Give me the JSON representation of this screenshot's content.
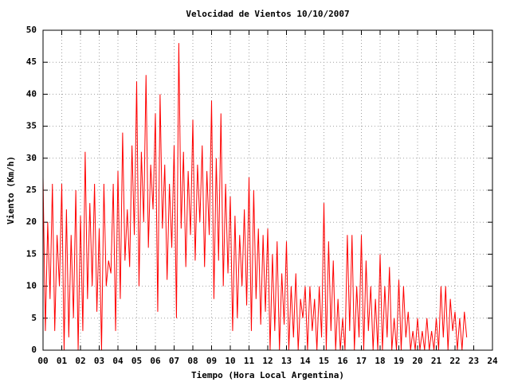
{
  "chart_data": {
    "type": "line",
    "title": "Velocidad de Vientos 10/10/2007",
    "x_label": "Tiempo (Hora Local Argentina)",
    "y_label": "Viento (Km/h)",
    "color": "#ff0000",
    "grid": true,
    "xlim": [
      0,
      24
    ],
    "ylim": [
      0,
      50
    ],
    "xticks": [
      {
        "value": 0,
        "label": "00"
      },
      {
        "value": 1,
        "label": "01"
      },
      {
        "value": 2,
        "label": "02"
      },
      {
        "value": 3,
        "label": "03"
      },
      {
        "value": 4,
        "label": "04"
      },
      {
        "value": 5,
        "label": "05"
      },
      {
        "value": 6,
        "label": "06"
      },
      {
        "value": 7,
        "label": "07"
      },
      {
        "value": 8,
        "label": "08"
      },
      {
        "value": 9,
        "label": "09"
      },
      10,
      11,
      12,
      13,
      14,
      15,
      16,
      17,
      18,
      19,
      20,
      21,
      22,
      23,
      24
    ],
    "yticks": [
      0,
      5,
      10,
      15,
      20,
      25,
      30,
      35,
      40,
      45,
      50
    ],
    "x": [
      0,
      0.125,
      0.25,
      0.375,
      0.5,
      0.625,
      0.75,
      0.875,
      1,
      1.125,
      1.25,
      1.375,
      1.5,
      1.625,
      1.75,
      1.875,
      2,
      2.125,
      2.25,
      2.375,
      2.5,
      2.625,
      2.75,
      2.875,
      3,
      3.125,
      3.25,
      3.375,
      3.5,
      3.625,
      3.75,
      3.875,
      4,
      4.125,
      4.25,
      4.375,
      4.5,
      4.625,
      4.75,
      4.875,
      5,
      5.125,
      5.25,
      5.375,
      5.5,
      5.625,
      5.75,
      5.875,
      6,
      6.125,
      6.25,
      6.375,
      6.5,
      6.625,
      6.75,
      6.875,
      7,
      7.125,
      7.25,
      7.375,
      7.5,
      7.625,
      7.75,
      7.875,
      8,
      8.125,
      8.25,
      8.375,
      8.5,
      8.625,
      8.75,
      8.875,
      9,
      9.125,
      9.25,
      9.375,
      9.5,
      9.625,
      9.75,
      9.875,
      10,
      10.125,
      10.25,
      10.375,
      10.5,
      10.625,
      10.75,
      10.875,
      11,
      11.125,
      11.25,
      11.375,
      11.5,
      11.625,
      11.75,
      11.875,
      12,
      12.125,
      12.25,
      12.375,
      12.5,
      12.625,
      12.75,
      12.875,
      13,
      13.125,
      13.25,
      13.375,
      13.5,
      13.625,
      13.75,
      13.875,
      14,
      14.125,
      14.25,
      14.375,
      14.5,
      14.625,
      14.75,
      14.875,
      15,
      15.125,
      15.25,
      15.375,
      15.5,
      15.625,
      15.75,
      15.875,
      16,
      16.125,
      16.25,
      16.375,
      16.5,
      16.625,
      16.75,
      16.875,
      17,
      17.125,
      17.25,
      17.375,
      17.5,
      17.625,
      17.75,
      17.875,
      18,
      18.125,
      18.25,
      18.375,
      18.5,
      18.625,
      18.75,
      18.875,
      19,
      19.125,
      19.25,
      19.375,
      19.5,
      19.625,
      19.75,
      19.875,
      20,
      20.125,
      20.25,
      20.375,
      20.5,
      20.625,
      20.75,
      20.875,
      21,
      21.125,
      21.25,
      21.375,
      21.5,
      21.625,
      21.75,
      21.875,
      22,
      22.125,
      22.25,
      22.375,
      22.5,
      22.625
    ],
    "values": [
      27,
      3,
      20,
      8,
      26,
      3,
      18,
      10,
      26,
      0,
      22,
      2,
      18,
      5,
      25,
      0,
      21,
      3,
      31,
      8,
      23,
      10,
      26,
      6,
      19,
      0,
      26,
      10,
      14,
      12,
      26,
      3,
      28,
      8,
      34,
      14,
      22,
      13,
      32,
      18,
      42,
      10,
      31,
      20,
      43,
      16,
      29,
      22,
      37,
      6,
      40,
      19,
      29,
      11,
      26,
      16,
      32,
      5,
      48,
      19,
      31,
      13,
      28,
      18,
      36,
      14,
      29,
      20,
      32,
      13,
      28,
      18,
      39,
      8,
      30,
      14,
      37,
      10,
      26,
      12,
      24,
      3,
      21,
      5,
      18,
      10,
      22,
      7,
      27,
      3,
      25,
      8,
      19,
      4,
      18,
      6,
      19,
      0,
      15,
      3,
      17,
      0,
      12,
      4,
      17,
      0,
      10,
      2,
      12,
      0,
      8,
      5,
      10,
      0,
      10,
      3,
      8,
      0,
      10,
      2,
      23,
      0,
      17,
      3,
      14,
      0,
      8,
      0,
      5,
      0,
      18,
      3,
      18,
      0,
      10,
      2,
      18,
      0,
      14,
      3,
      10,
      0,
      8,
      0,
      15,
      0,
      10,
      2,
      13,
      0,
      5,
      0,
      11,
      0,
      10,
      2,
      6,
      0,
      3,
      0,
      5,
      0,
      3,
      0,
      5,
      0,
      3,
      0,
      5,
      0,
      10,
      2,
      10,
      0,
      8,
      3,
      6,
      0,
      5,
      0,
      6,
      2
    ]
  }
}
